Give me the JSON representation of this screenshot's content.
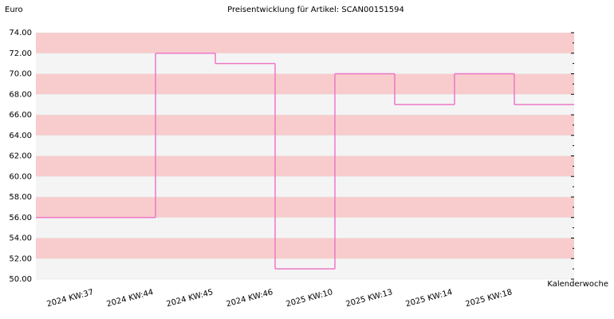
{
  "chart_data": {
    "type": "step-line",
    "title": "Preisentwicklung für Artikel: SCAN00151594",
    "y_label": "Euro",
    "x_label": "Kalenderwoche",
    "categories": [
      "2024 KW:37",
      "2024 KW:44",
      "2024 KW:45",
      "2024 KW:46",
      "2025 KW:10",
      "2025 KW:13",
      "2025 KW:14",
      "2025 KW:18"
    ],
    "values": [
      56,
      72,
      71,
      51,
      70,
      67,
      70,
      67
    ],
    "color": "#ee77c8",
    "band_colors": [
      "#f8cccc",
      "#f4f4f4"
    ],
    "ylim": [
      50,
      74
    ],
    "yticks": [
      {
        "value": 50,
        "label": "50.00"
      },
      {
        "value": 52,
        "label": "52.00"
      },
      {
        "value": 54,
        "label": "54.00"
      },
      {
        "value": 56,
        "label": "56.00"
      },
      {
        "value": 58,
        "label": "58.00"
      },
      {
        "value": 60,
        "label": "60.00"
      },
      {
        "value": 62,
        "label": "62.00"
      },
      {
        "value": 64,
        "label": "64.00"
      },
      {
        "value": 66,
        "label": "66.00"
      },
      {
        "value": 68,
        "label": "68.00"
      },
      {
        "value": 70,
        "label": "70.00"
      },
      {
        "value": 72,
        "label": "72.00"
      },
      {
        "value": 74,
        "label": "74.00"
      }
    ]
  }
}
